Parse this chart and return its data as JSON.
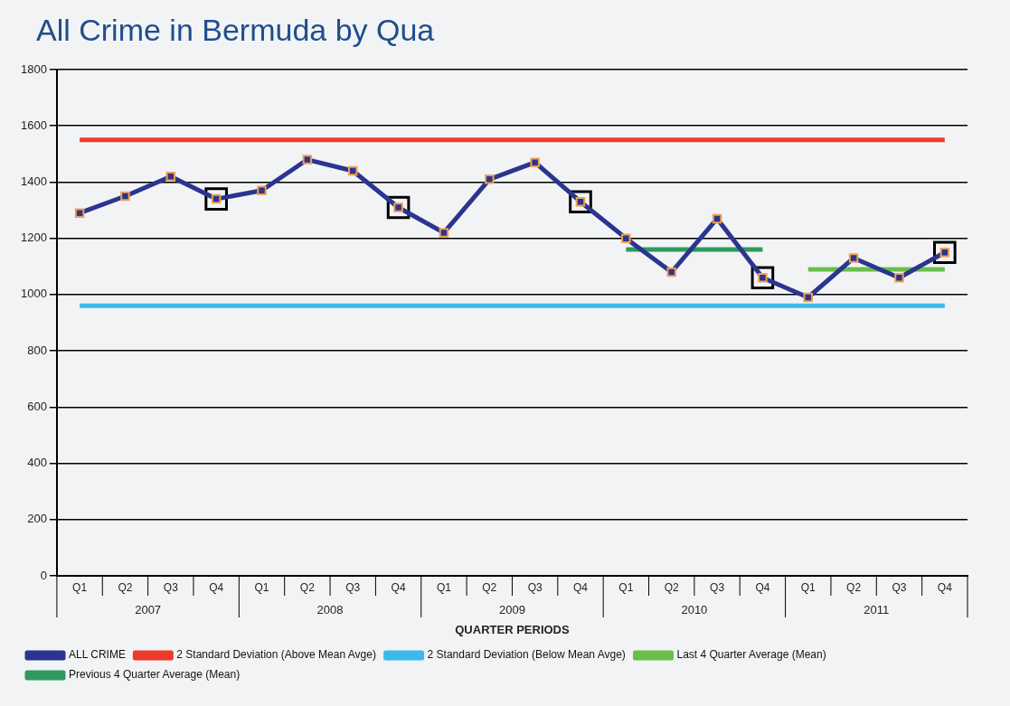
{
  "chart_data": {
    "type": "line",
    "title": "All Crime in Bermuda by Qua",
    "xlabel": "QUARTER PERIODS",
    "categories": [
      "Q1",
      "Q2",
      "Q3",
      "Q4",
      "Q1",
      "Q2",
      "Q3",
      "Q4",
      "Q1",
      "Q2",
      "Q3",
      "Q4",
      "Q1",
      "Q2",
      "Q3",
      "Q4",
      "Q1",
      "Q2",
      "Q3",
      "Q4"
    ],
    "series": [
      {
        "name": "ALL CRIME",
        "color": "#2b3590",
        "marker": "square",
        "values": [
          1290,
          1350,
          1420,
          1340,
          1370,
          1480,
          1440,
          1310,
          1220,
          1410,
          1470,
          1330,
          1200,
          1080,
          1270,
          1060,
          990,
          1130,
          1060,
          1150
        ]
      },
      {
        "name": "2 Standard Deviation (Above Mean Avge)",
        "color": "#ee3a2a",
        "marker": "none",
        "values": [
          1550,
          1550,
          1550,
          1550,
          1550,
          1550,
          1550,
          1550,
          1550,
          1550,
          1550,
          1550,
          1550,
          1550,
          1550,
          1550,
          1550,
          1550,
          1550,
          1550
        ]
      },
      {
        "name": "2 Standard Deviation (Below Mean Avge)",
        "color": "#3bb9ea",
        "marker": "none",
        "values": [
          960,
          960,
          960,
          960,
          960,
          960,
          960,
          960,
          960,
          960,
          960,
          960,
          960,
          960,
          960,
          960,
          960,
          960,
          960,
          960
        ]
      },
      {
        "name": "Last 4 Quarter Average (Mean)",
        "color": "#6abf4b",
        "marker": "none",
        "values": [
          null,
          null,
          null,
          null,
          null,
          null,
          null,
          null,
          null,
          null,
          null,
          null,
          null,
          null,
          null,
          null,
          1090,
          1090,
          1090,
          1090
        ]
      },
      {
        "name": "Previous 4 Quarter Average (Mean)",
        "color": "#2e9a5f",
        "marker": "none",
        "values": [
          null,
          null,
          null,
          null,
          null,
          null,
          null,
          null,
          null,
          null,
          null,
          null,
          1160,
          1160,
          1160,
          1160,
          null,
          null,
          null,
          null
        ]
      },
      {
        "type": "scatter",
        "color": "#000000",
        "marker": "square",
        "values": [
          null,
          null,
          null,
          1340,
          null,
          null,
          null,
          1310,
          null,
          null,
          null,
          1330,
          null,
          null,
          null,
          1060,
          null,
          null,
          null,
          1150
        ]
      }
    ],
    "ylim": [
      0,
      1800
    ],
    "yticks": [
      0,
      200,
      400,
      600,
      800,
      1000,
      1200,
      1400,
      1600,
      1800
    ],
    "grid": "y",
    "legend": "bottom left",
    "annotations": [
      "2007",
      "2008",
      "2009",
      "2010",
      "2011"
    ]
  }
}
